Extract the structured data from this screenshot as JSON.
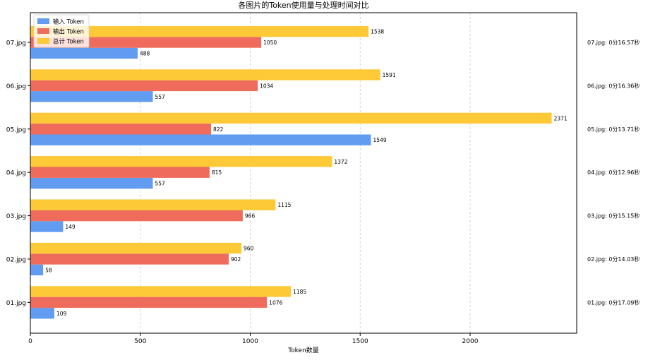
{
  "chart_data": {
    "type": "bar",
    "orientation": "horizontal",
    "title": "各图片的Token使用量与处理时间对比",
    "xlabel": "Token数量",
    "ylabel": "",
    "xlim": [
      0,
      2500
    ],
    "xticks": [
      0,
      500,
      1000,
      1500,
      2000
    ],
    "grid": "vertical dashed",
    "legend_position": "top-left",
    "categories": [
      "01.jpg",
      "02.jpg",
      "03.jpg",
      "04.jpg",
      "05.jpg",
      "06.jpg",
      "07.jpg"
    ],
    "series": [
      {
        "name": "输入 Token",
        "color": "#619cf0",
        "values": [
          109,
          58,
          149,
          557,
          1549,
          557,
          488
        ]
      },
      {
        "name": "输出 Token",
        "color": "#ef6b5c",
        "values": [
          1076,
          902,
          966,
          815,
          822,
          1034,
          1050
        ]
      },
      {
        "name": "总计 Token",
        "color": "#fdc936",
        "values": [
          1185,
          960,
          1115,
          1372,
          2371,
          1591,
          1538
        ]
      }
    ],
    "annotations": [
      "01.jpg: 0分17.09秒",
      "02.jpg: 0分14.03秒",
      "03.jpg: 0分15.15秒",
      "04.jpg: 0分12.96秒",
      "05.jpg: 0分13.71秒",
      "06.jpg: 0分16.36秒",
      "07.jpg: 0分16.57秒"
    ]
  }
}
